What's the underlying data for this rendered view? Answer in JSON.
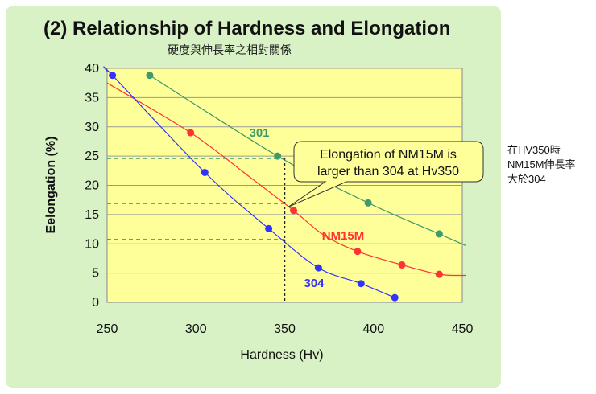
{
  "title": "(2) Relationship of Hardness and Elongation",
  "subtitle": "硬度與伸長率之相對關係",
  "side_note": [
    "在HV350時",
    "NM15M伸長率",
    "大於304"
  ],
  "colors": {
    "plot_bg": "#ffff99",
    "card_bg": "#d8f1c5",
    "series_301": "#3e9a6b",
    "series_nm15m": "#ff3333",
    "series_304": "#3333ff",
    "callout_bg": "#ffff99"
  },
  "chart_data": {
    "type": "line",
    "xlabel": "Hardness (Hv)",
    "ylabel": "Eelongation (%)",
    "xlim": [
      250,
      450
    ],
    "ylim": [
      0,
      40
    ],
    "x_ticks": [
      "250",
      "300",
      "350",
      "400",
      "450"
    ],
    "y_ticks": [
      "0",
      "5",
      "10",
      "15",
      "20",
      "25",
      "30",
      "35",
      "40"
    ],
    "grid": "horizontal",
    "series": [
      {
        "name": "301",
        "color": "#3e9a6b",
        "points": [
          [
            274,
            38.8
          ],
          [
            346,
            25
          ],
          [
            397,
            17
          ],
          [
            437,
            11.7
          ]
        ],
        "curve": [
          [
            274,
            38.8
          ],
          [
            346,
            25
          ],
          [
            397,
            17
          ],
          [
            437,
            11.7
          ],
          [
            452,
            9.7
          ]
        ]
      },
      {
        "name": "NM15M",
        "color": "#ff3333",
        "points": [
          [
            297,
            29
          ],
          [
            355,
            15.7
          ],
          [
            391,
            8.7
          ],
          [
            416,
            6.4
          ],
          [
            437,
            4.8
          ]
        ],
        "curve": [
          [
            250,
            37.5
          ],
          [
            297,
            29
          ],
          [
            330,
            21.5
          ],
          [
            355,
            15.7
          ],
          [
            372,
            11.5
          ],
          [
            391,
            8.7
          ],
          [
            416,
            6.4
          ],
          [
            437,
            4.8
          ],
          [
            452,
            4.6
          ]
        ]
      },
      {
        "name": "304",
        "color": "#3333ff",
        "points": [
          [
            253,
            38.8
          ],
          [
            305,
            22.2
          ],
          [
            341,
            12.6
          ],
          [
            369,
            5.9
          ],
          [
            393,
            3.2
          ],
          [
            412,
            0.8
          ]
        ],
        "curve": [
          [
            250,
            39.5
          ],
          [
            253,
            38.8
          ],
          [
            305,
            22.2
          ],
          [
            341,
            12.6
          ],
          [
            369,
            5.9
          ],
          [
            393,
            3.2
          ],
          [
            412,
            0.8
          ]
        ]
      }
    ],
    "reference_lines": {
      "x": 350,
      "y_301": 24.6,
      "y_nm15m": 16.9,
      "y_304": 10.7
    },
    "annotation": {
      "text_line1": "Elongation of NM15M is",
      "text_line2": "larger than 304 at Hv350",
      "points_to": [
        352,
        16.3
      ]
    }
  }
}
